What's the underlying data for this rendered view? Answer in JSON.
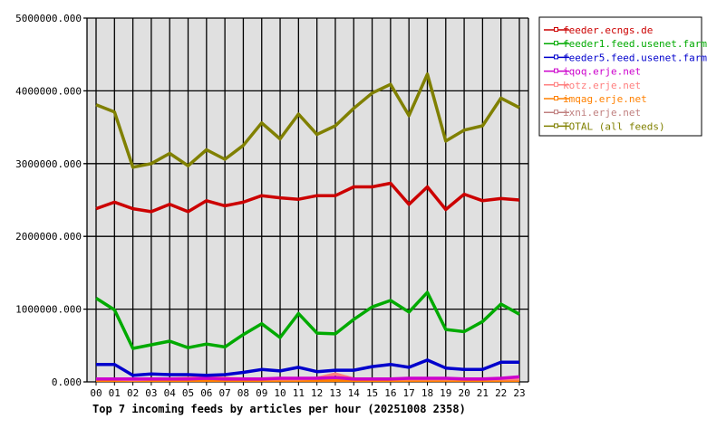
{
  "chart_data": {
    "type": "line",
    "title": "Top 7 incoming feeds by articles per hour (20251008 2358)",
    "xlabel": "",
    "ylabel": "",
    "ylim": [
      0,
      5000000
    ],
    "yticks": [
      "0.000",
      "1000000.000",
      "2000000.000",
      "3000000.000",
      "4000000.000",
      "5000000.000"
    ],
    "grid": true,
    "legend_position": "right",
    "categories": [
      "00",
      "01",
      "02",
      "03",
      "04",
      "05",
      "06",
      "07",
      "08",
      "09",
      "10",
      "11",
      "12",
      "13",
      "14",
      "15",
      "16",
      "17",
      "18",
      "19",
      "20",
      "21",
      "22",
      "23"
    ],
    "series": [
      {
        "name": "feeder.ecngs.de",
        "color": "#cc0000",
        "values": [
          2380000,
          2470000,
          2380000,
          2340000,
          2440000,
          2340000,
          2490000,
          2420000,
          2470000,
          2560000,
          2530000,
          2510000,
          2560000,
          2560000,
          2680000,
          2680000,
          2730000,
          2440000,
          2680000,
          2370000,
          2580000,
          2490000,
          2520000,
          2500000
        ]
      },
      {
        "name": "feeder1.feed.usenet.farm",
        "color": "#00aa00",
        "values": [
          1150000,
          990000,
          460000,
          510000,
          560000,
          470000,
          520000,
          480000,
          650000,
          800000,
          610000,
          940000,
          670000,
          660000,
          860000,
          1030000,
          1120000,
          960000,
          1230000,
          720000,
          690000,
          830000,
          1070000,
          930000
        ]
      },
      {
        "name": "feeder5.feed.usenet.farm",
        "color": "#0000cc",
        "values": [
          240000,
          240000,
          90000,
          110000,
          100000,
          100000,
          90000,
          100000,
          130000,
          170000,
          150000,
          200000,
          140000,
          160000,
          160000,
          210000,
          240000,
          200000,
          300000,
          190000,
          170000,
          170000,
          270000,
          270000
        ]
      },
      {
        "name": "iqoq.erje.net",
        "color": "#cc00cc",
        "values": [
          40000,
          40000,
          40000,
          40000,
          40000,
          40000,
          50000,
          40000,
          40000,
          40000,
          50000,
          50000,
          50000,
          60000,
          40000,
          40000,
          40000,
          50000,
          50000,
          50000,
          40000,
          40000,
          50000,
          70000
        ]
      },
      {
        "name": "kotz.erje.net",
        "color": "#ff8080",
        "values": [
          40000,
          40000,
          30000,
          40000,
          40000,
          50000,
          60000,
          50000,
          40000,
          40000,
          40000,
          40000,
          50000,
          110000,
          40000,
          40000,
          40000,
          40000,
          40000,
          40000,
          40000,
          40000,
          40000,
          40000
        ]
      },
      {
        "name": "imqag.erje.net",
        "color": "#ff8000",
        "values": [
          20000,
          20000,
          20000,
          20000,
          20000,
          20000,
          20000,
          20000,
          20000,
          20000,
          20000,
          20000,
          20000,
          20000,
          20000,
          20000,
          20000,
          20000,
          20000,
          20000,
          20000,
          20000,
          20000,
          20000
        ]
      },
      {
        "name": "ixni.erje.net",
        "color": "#c08080",
        "values": [
          30000,
          30000,
          30000,
          30000,
          30000,
          30000,
          30000,
          30000,
          30000,
          30000,
          30000,
          30000,
          30000,
          30000,
          30000,
          30000,
          30000,
          30000,
          30000,
          30000,
          30000,
          30000,
          30000,
          30000
        ]
      },
      {
        "name": "TOTAL (all feeds)",
        "color": "#808000",
        "values": [
          3810000,
          3710000,
          2950000,
          3000000,
          3140000,
          2970000,
          3190000,
          3060000,
          3250000,
          3560000,
          3340000,
          3680000,
          3400000,
          3520000,
          3760000,
          3970000,
          4090000,
          3660000,
          4230000,
          3310000,
          3460000,
          3520000,
          3900000,
          3770000
        ]
      }
    ]
  }
}
